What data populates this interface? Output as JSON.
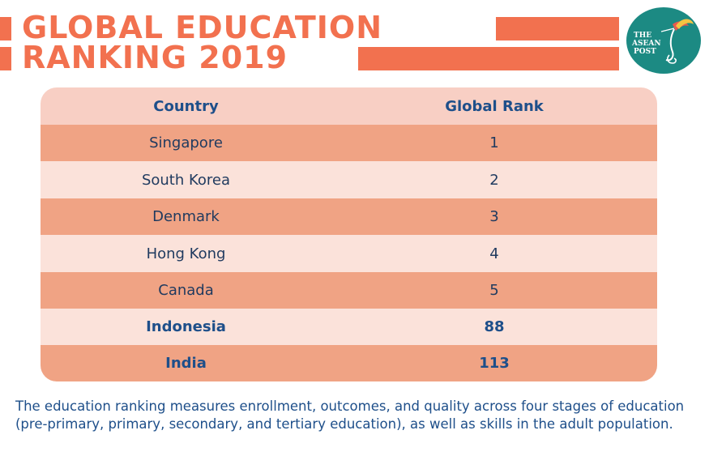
{
  "header": {
    "title_line1": "GLOBAL EDUCATION",
    "title_line2": "RANKING 2019"
  },
  "logo": {
    "text_line1": "THE",
    "text_line2": "ASEAN",
    "text_line3": "POST"
  },
  "colors": {
    "accent": "#f2714f",
    "header_row": "#f8cfc4",
    "dark_row": "#f0a384",
    "light_row": "#fbe2da",
    "text": "#1e4f8a",
    "logo_bg": "#1c8a83"
  },
  "chart_data": {
    "type": "table",
    "columns": [
      "Country",
      "Global Rank"
    ],
    "rows": [
      {
        "country": "Singapore",
        "rank": "1",
        "bold": false
      },
      {
        "country": "South Korea",
        "rank": "2",
        "bold": false
      },
      {
        "country": "Denmark",
        "rank": "3",
        "bold": false
      },
      {
        "country": "Hong Kong",
        "rank": "4",
        "bold": false
      },
      {
        "country": "Canada",
        "rank": "5",
        "bold": false
      },
      {
        "country": "Indonesia",
        "rank": "88",
        "bold": true
      },
      {
        "country": "India",
        "rank": "113",
        "bold": true
      }
    ]
  },
  "footnote": "The education ranking measures enrollment, outcomes, and quality across four stages of education (pre-primary, primary, secondary, and tertiary education), as well as skills in the adult population."
}
